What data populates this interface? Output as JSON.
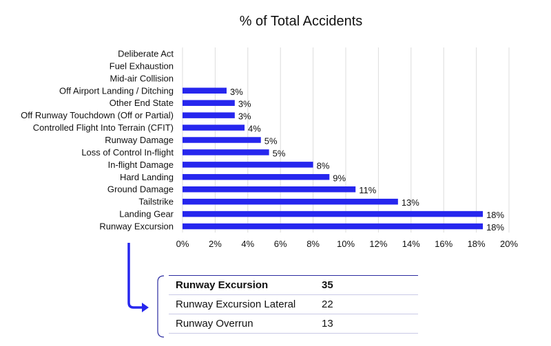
{
  "chart_data": {
    "type": "bar",
    "orientation": "horizontal",
    "title": "% of Total Accidents",
    "categories": [
      "Deliberate Act",
      "Fuel Exhaustion",
      "Mid-air Collision",
      "Off Airport Landing / Ditching",
      "Other End State",
      "Off Runway Touchdown (Off or Partial)",
      "Controlled Flight Into Terrain (CFIT)",
      "Runway Damage",
      "Loss of Control In-flight",
      "In-flight Damage",
      "Hard Landing",
      "Ground Damage",
      "Tailstrike",
      "Landing Gear",
      "Runway Excursion"
    ],
    "values": [
      0,
      0,
      0,
      2.7,
      3.2,
      3.2,
      3.8,
      4.8,
      5.3,
      8.0,
      9.0,
      10.6,
      13.2,
      18.4,
      18.4
    ],
    "data_labels": [
      "",
      "",
      "",
      "3%",
      "3%",
      "3%",
      "4%",
      "5%",
      "5%",
      "8%",
      "9%",
      "11%",
      "13%",
      "18%",
      "18%"
    ],
    "xlim": [
      0,
      20
    ],
    "x_ticks": [
      "0%",
      "2%",
      "4%",
      "6%",
      "8%",
      "10%",
      "12%",
      "14%",
      "16%",
      "18%",
      "20%"
    ],
    "grid": true,
    "bar_color": "#2626ee",
    "xlabel": "",
    "ylabel": ""
  },
  "breakdown": {
    "rows": [
      {
        "label": "Runway Excursion",
        "value": "35"
      },
      {
        "label": "Runway Excursion Lateral",
        "value": "22"
      },
      {
        "label": "Runway Overrun",
        "value": "13"
      }
    ],
    "accent_color": "#2a2aa0"
  }
}
